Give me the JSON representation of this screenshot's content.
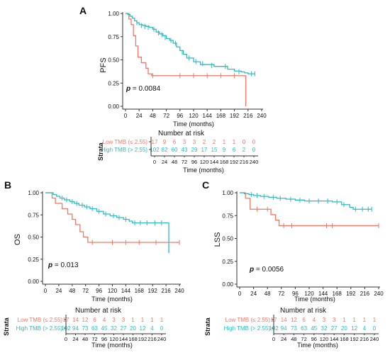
{
  "colors": {
    "low": "#F07868",
    "high": "#2BBCC4",
    "axis": "#333333",
    "text": "#111111"
  },
  "panels": [
    {
      "letter": "A",
      "ylabel": "PFS",
      "xlabel": "Time (months)",
      "pvalue_p": "p",
      "pvalue_rest": " = 0.0084",
      "risk_title": "Number at risk",
      "strata_label": "Strata",
      "risk_xlabel": "Time (months)"
    },
    {
      "letter": "B",
      "ylabel": "OS",
      "xlabel": "Time (months)",
      "pvalue_p": "p",
      "pvalue_rest": " = 0.013",
      "risk_title": "Number at risk",
      "strata_label": "Strata",
      "risk_xlabel": "Time (months)"
    },
    {
      "letter": "C",
      "ylabel": "LSS",
      "xlabel": "Time (months)",
      "pvalue_p": "p",
      "pvalue_rest": " = 0.0056",
      "risk_title": "Number at risk",
      "strata_label": "Strata",
      "risk_xlabel": "Time (months)"
    }
  ],
  "chart_data": [
    {
      "type": "line",
      "panel": "A",
      "title": "",
      "xlabel": "Time (months)",
      "ylabel": "PFS",
      "xlim": [
        0,
        240
      ],
      "ylim": [
        0,
        1
      ],
      "x_ticks": [
        0,
        24,
        48,
        72,
        96,
        120,
        144,
        168,
        192,
        216,
        240
      ],
      "y_ticks": [
        "0.00",
        "0.25",
        "0.50",
        "0.75",
        "1.00"
      ],
      "pvalue": "p = 0.0084",
      "series": [
        {
          "name": "Low TMB (≤ 2.55)",
          "color": "#F07868",
          "x": [
            0,
            6,
            10,
            14,
            18,
            22,
            28,
            36,
            40,
            46,
            210,
            212
          ],
          "y": [
            1.0,
            0.94,
            0.88,
            0.76,
            0.65,
            0.53,
            0.47,
            0.41,
            0.35,
            0.33,
            0.33,
            0.0
          ],
          "censor_x": [
            48,
            96,
            120,
            144,
            168,
            192
          ],
          "censor_y": [
            0.33,
            0.33,
            0.33,
            0.33,
            0.33,
            0.33
          ]
        },
        {
          "name": "High TMB (> 2.55)",
          "color": "#2BBCC4",
          "x": [
            0,
            4,
            8,
            12,
            16,
            20,
            24,
            30,
            36,
            42,
            48,
            54,
            60,
            66,
            72,
            78,
            84,
            90,
            96,
            102,
            108,
            120,
            132,
            144,
            156,
            168,
            180,
            192,
            204,
            210,
            216,
            228
          ],
          "y": [
            1.0,
            0.99,
            0.97,
            0.95,
            0.92,
            0.9,
            0.88,
            0.87,
            0.86,
            0.85,
            0.83,
            0.8,
            0.78,
            0.76,
            0.73,
            0.71,
            0.68,
            0.64,
            0.6,
            0.56,
            0.52,
            0.48,
            0.45,
            0.45,
            0.43,
            0.43,
            0.4,
            0.38,
            0.37,
            0.36,
            0.35,
            0.35
          ],
          "censor_x": [
            20,
            28,
            34,
            40,
            50,
            58,
            64,
            70,
            80,
            88,
            100,
            112,
            124,
            136,
            152,
            176,
            200,
            222,
            228
          ],
          "censor_y": [
            0.9,
            0.87,
            0.86,
            0.85,
            0.83,
            0.79,
            0.77,
            0.74,
            0.71,
            0.68,
            0.58,
            0.52,
            0.48,
            0.46,
            0.44,
            0.43,
            0.37,
            0.35,
            0.35
          ]
        }
      ],
      "risk_table": {
        "rows": [
          {
            "label": "Low TMB (≤ 2.55)",
            "values": [
              17,
              9,
              6,
              3,
              3,
              2,
              2,
              1,
              1,
              0,
              0
            ]
          },
          {
            "label": "High TMB (> 2.55)",
            "values": [
              102,
              82,
              60,
              43,
              29,
              17,
              15,
              9,
              6,
              2,
              0
            ]
          }
        ]
      }
    },
    {
      "type": "line",
      "panel": "B",
      "title": "",
      "xlabel": "Time (months)",
      "ylabel": "OS",
      "xlim": [
        0,
        240
      ],
      "ylim": [
        0,
        1
      ],
      "x_ticks": [
        0,
        24,
        48,
        72,
        96,
        120,
        144,
        168,
        192,
        216,
        240
      ],
      "y_ticks": [
        "0.00",
        "0.25",
        "0.50",
        "0.75",
        "1.00"
      ],
      "pvalue": "p = 0.013",
      "series": [
        {
          "name": "Low TMB (≤ 2.55)",
          "color": "#F07868",
          "x": [
            0,
            12,
            18,
            30,
            40,
            48,
            54,
            62,
            68,
            76,
            240
          ],
          "y": [
            1.0,
            0.94,
            0.88,
            0.82,
            0.76,
            0.7,
            0.64,
            0.56,
            0.5,
            0.44,
            0.44
          ],
          "censor_x": [
            84,
            120,
            144,
            168,
            198,
            240
          ],
          "censor_y": [
            0.44,
            0.44,
            0.44,
            0.44,
            0.44,
            0.44
          ]
        },
        {
          "name": "High TMB (> 2.55)",
          "color": "#2BBCC4",
          "x": [
            0,
            14,
            20,
            26,
            34,
            44,
            52,
            60,
            70,
            80,
            92,
            104,
            116,
            128,
            140,
            150,
            156,
            220,
            221
          ],
          "y": [
            1.0,
            0.98,
            0.96,
            0.94,
            0.92,
            0.9,
            0.88,
            0.86,
            0.84,
            0.82,
            0.79,
            0.76,
            0.74,
            0.72,
            0.7,
            0.68,
            0.66,
            0.66,
            0.32
          ],
          "censor_x": [
            30,
            38,
            48,
            56,
            66,
            74,
            84,
            96,
            108,
            122,
            132,
            144,
            160,
            170,
            182,
            196,
            208
          ],
          "censor_y": [
            0.94,
            0.92,
            0.9,
            0.88,
            0.86,
            0.84,
            0.82,
            0.79,
            0.76,
            0.74,
            0.72,
            0.7,
            0.66,
            0.66,
            0.66,
            0.66,
            0.66
          ]
        }
      ],
      "risk_table": {
        "rows": [
          {
            "label": "Low TMB (≤ 2.55)",
            "values": [
              17,
              14,
              12,
              6,
              4,
              3,
              3,
              1,
              1,
              1,
              1
            ]
          },
          {
            "label": "High TMB (> 2.55)",
            "values": [
              102,
              94,
              73,
              63,
              45,
              32,
              27,
              20,
              12,
              4,
              0
            ]
          }
        ]
      }
    },
    {
      "type": "line",
      "panel": "C",
      "title": "",
      "xlabel": "Time (months)",
      "ylabel": "LSS",
      "xlim": [
        0,
        240
      ],
      "ylim": [
        0,
        1
      ],
      "x_ticks": [
        0,
        24,
        48,
        72,
        96,
        120,
        144,
        168,
        192,
        216,
        240
      ],
      "y_ticks": [
        "0.00",
        "0.25",
        "0.50",
        "0.75",
        "1.00"
      ],
      "pvalue": "p = 0.0056",
      "series": [
        {
          "name": "Low TMB (≤ 2.55)",
          "color": "#F07868",
          "x": [
            0,
            10,
            18,
            54,
            62,
            68,
            240
          ],
          "y": [
            1.0,
            0.94,
            0.82,
            0.76,
            0.7,
            0.64,
            0.64
          ],
          "censor_x": [
            30,
            48,
            76,
            90,
            150,
            160,
            240
          ],
          "censor_y": [
            0.82,
            0.82,
            0.64,
            0.64,
            0.64,
            0.64,
            0.64
          ]
        },
        {
          "name": "High TMB (> 2.55)",
          "color": "#2BBCC4",
          "x": [
            0,
            8,
            16,
            24,
            36,
            50,
            64,
            80,
            96,
            112,
            128,
            144,
            160,
            176,
            190,
            196,
            228
          ],
          "y": [
            1.0,
            0.99,
            0.98,
            0.97,
            0.96,
            0.95,
            0.94,
            0.93,
            0.92,
            0.91,
            0.91,
            0.91,
            0.9,
            0.87,
            0.84,
            0.82,
            0.82
          ],
          "censor_x": [
            20,
            30,
            42,
            58,
            70,
            88,
            104,
            120,
            136,
            152,
            168,
            180,
            200,
            212,
            222,
            228
          ],
          "censor_y": [
            0.98,
            0.97,
            0.96,
            0.95,
            0.94,
            0.93,
            0.92,
            0.91,
            0.91,
            0.91,
            0.9,
            0.87,
            0.82,
            0.82,
            0.82,
            0.82
          ]
        }
      ],
      "risk_table": {
        "rows": [
          {
            "label": "Low TMB (≤ 2.55)",
            "values": [
              17,
              14,
              12,
              6,
              4,
              3,
              3,
              1,
              1,
              1,
              1
            ]
          },
          {
            "label": "High TMB (> 2.55)",
            "values": [
              102,
              94,
              73,
              63,
              45,
              32,
              27,
              20,
              12,
              4,
              0
            ]
          }
        ]
      }
    }
  ]
}
